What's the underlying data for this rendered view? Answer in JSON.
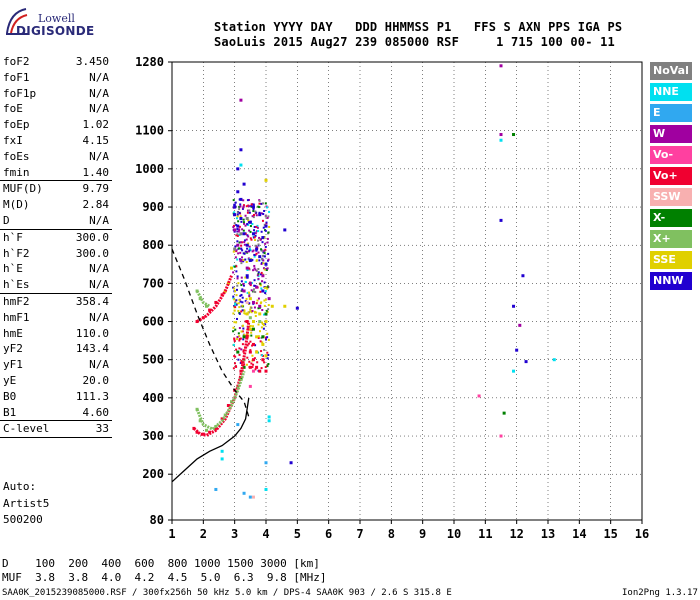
{
  "logo": {
    "top": "Lowell",
    "bottom": "DIGISONDE"
  },
  "header": {
    "line1": "Station YYYY DAY   DDD HHMMSS P1   FFS S AXN PPS IGA PS",
    "line2": "SaoLuis 2015 Aug27 239 085000 RSF     1 715 100 00- 11"
  },
  "params": [
    {
      "name": "foF2",
      "value": "3.450"
    },
    {
      "name": "foF1",
      "value": "N/A"
    },
    {
      "name": "foF1p",
      "value": "N/A"
    },
    {
      "name": "foE",
      "value": "N/A"
    },
    {
      "name": "foEp",
      "value": "1.02"
    },
    {
      "name": "fxI",
      "value": "4.15"
    },
    {
      "name": "foEs",
      "value": "N/A"
    },
    {
      "name": "fmin",
      "value": "1.40",
      "sep": true
    },
    {
      "name": "MUF(D)",
      "value": "9.79"
    },
    {
      "name": "M(D)",
      "value": "2.84"
    },
    {
      "name": "D",
      "value": "N/A",
      "sep": true
    },
    {
      "name": "h`F",
      "value": "300.0"
    },
    {
      "name": "h`F2",
      "value": "300.0"
    },
    {
      "name": "h`E",
      "value": "N/A"
    },
    {
      "name": "h`Es",
      "value": "N/A",
      "sep": true
    },
    {
      "name": "hmF2",
      "value": "358.4"
    },
    {
      "name": "hmF1",
      "value": "N/A"
    },
    {
      "name": "hmE",
      "value": "110.0"
    },
    {
      "name": "yF2",
      "value": "143.4"
    },
    {
      "name": "yF1",
      "value": "N/A"
    },
    {
      "name": "yE",
      "value": "20.0"
    },
    {
      "name": "B0",
      "value": "111.3"
    },
    {
      "name": "B1",
      "value": "4.60",
      "sep": true
    },
    {
      "name": "C-level",
      "value": "33",
      "sep": true
    }
  ],
  "auto": {
    "label": "Auto:",
    "system": "Artist5",
    "version": "500200"
  },
  "legend": [
    {
      "label": "NoVal",
      "color": "#808080"
    },
    {
      "label": "NNE",
      "color": "#00e0f0"
    },
    {
      "label": "E",
      "color": "#30a8f0"
    },
    {
      "label": "W",
      "color": "#a000a0"
    },
    {
      "label": "Vo-",
      "color": "#ff40a0"
    },
    {
      "label": "Vo+",
      "color": "#f00030"
    },
    {
      "label": "SSW",
      "color": "#f8b0b0"
    },
    {
      "label": "X-",
      "color": "#008000"
    },
    {
      "label": "X+",
      "color": "#80c060"
    },
    {
      "label": "SSE",
      "color": "#e0d000"
    },
    {
      "label": "NNW",
      "color": "#2000d0"
    }
  ],
  "bottom": {
    "line1": "D    100  200  400  600  800 1000 1500 3000 [km]",
    "line2": "MUF  3.8  3.8  4.0  4.2  4.5  5.0  6.3  9.8 [MHz]"
  },
  "footer": {
    "left": "SAA0K_2015239085000.RSF / 300fx256h 50 kHz 5.0 km / DPS-4 SAA0K 903 / 2.6 S 315.8 E",
    "right": "Ion2Png 1.3.17"
  },
  "chart_data": {
    "type": "scatter",
    "title": "",
    "xlabel": "",
    "ylabel": "",
    "xlim": [
      1,
      16
    ],
    "ylim": [
      80,
      1280
    ],
    "x_ticks": [
      1,
      2,
      3,
      4,
      5,
      6,
      7,
      8,
      9,
      10,
      11,
      12,
      13,
      14,
      15,
      16
    ],
    "y_ticks": [
      80,
      200,
      300,
      400,
      500,
      600,
      700,
      800,
      900,
      1000,
      1100,
      1280
    ],
    "grid": true,
    "legend_position": "right",
    "series": [
      {
        "name": "NNW",
        "color_key": "NNW",
        "points": [
          [
            3.0,
            900
          ],
          [
            3.1,
            850
          ],
          [
            3.2,
            870
          ],
          [
            3.3,
            830
          ],
          [
            3.5,
            860
          ],
          [
            3.6,
            830
          ],
          [
            3.8,
            880
          ],
          [
            3.9,
            820
          ],
          [
            4.0,
            850
          ],
          [
            3.4,
            800
          ],
          [
            3.7,
            790
          ],
          [
            3.2,
            920
          ],
          [
            3.1,
            940
          ],
          [
            3.3,
            960
          ],
          [
            3.6,
            900
          ],
          [
            3.0,
            880
          ],
          [
            3.5,
            760
          ],
          [
            3.8,
            770
          ],
          [
            4.6,
            840
          ],
          [
            3.1,
            1000
          ],
          [
            3.2,
            1050
          ],
          [
            3.4,
            720
          ],
          [
            3.9,
            680
          ],
          [
            4.0,
            750
          ],
          [
            5.0,
            635
          ],
          [
            4.8,
            230
          ],
          [
            11.5,
            865
          ],
          [
            12.2,
            720
          ],
          [
            11.9,
            640
          ],
          [
            12.0,
            525
          ],
          [
            12.3,
            495
          ]
        ]
      },
      {
        "name": "W",
        "color_key": "W",
        "points": [
          [
            3.2,
            760
          ],
          [
            3.4,
            740
          ],
          [
            3.5,
            700
          ],
          [
            3.7,
            690
          ],
          [
            3.9,
            720
          ],
          [
            3.3,
            680
          ],
          [
            3.6,
            650
          ],
          [
            3.1,
            800
          ],
          [
            3.0,
            840
          ],
          [
            3.8,
            640
          ],
          [
            4.1,
            660
          ],
          [
            3.2,
            1180
          ],
          [
            11.5,
            1270
          ],
          [
            11.5,
            1090
          ],
          [
            12.1,
            590
          ]
        ]
      },
      {
        "name": "SSE",
        "color_key": "SSE",
        "points": [
          [
            3.4,
            620
          ],
          [
            3.5,
            580
          ],
          [
            3.6,
            600
          ],
          [
            3.7,
            560
          ],
          [
            3.8,
            620
          ],
          [
            4.0,
            600
          ],
          [
            4.2,
            640
          ],
          [
            3.5,
            660
          ],
          [
            3.9,
            540
          ],
          [
            4.0,
            510
          ],
          [
            3.7,
            520
          ],
          [
            2.8,
            700
          ],
          [
            2.7,
            680
          ],
          [
            2.9,
            740
          ],
          [
            4.6,
            640
          ],
          [
            4.0,
            970
          ]
        ]
      },
      {
        "name": "Vo+",
        "color_key": "Vo+",
        "points": [
          [
            3.4,
            560
          ],
          [
            3.5,
            520
          ],
          [
            3.6,
            500
          ],
          [
            3.7,
            480
          ],
          [
            3.8,
            470
          ],
          [
            3.5,
            480
          ],
          [
            3.6,
            540
          ],
          [
            3.9,
            500
          ],
          [
            4.0,
            470
          ],
          [
            3.4,
            600
          ],
          [
            1.8,
            600
          ],
          [
            2.0,
            610
          ],
          [
            2.2,
            630
          ],
          [
            2.4,
            650
          ],
          [
            2.6,
            670
          ],
          [
            1.7,
            320
          ],
          [
            1.8,
            310
          ],
          [
            2.0,
            305
          ],
          [
            2.2,
            310
          ],
          [
            2.4,
            320
          ],
          [
            2.6,
            345
          ],
          [
            2.8,
            380
          ],
          [
            3.0,
            420
          ],
          [
            3.2,
            470
          ]
        ]
      },
      {
        "name": "X-",
        "color_key": "X-",
        "points": [
          [
            3.3,
            560
          ],
          [
            3.6,
            580
          ],
          [
            3.9,
            560
          ],
          [
            4.0,
            620
          ],
          [
            3.2,
            450
          ],
          [
            3.3,
            480
          ],
          [
            3.1,
            520
          ],
          [
            11.9,
            1090
          ],
          [
            11.6,
            360
          ]
        ]
      },
      {
        "name": "X+",
        "color_key": "X+",
        "points": [
          [
            1.8,
            680
          ],
          [
            1.9,
            660
          ],
          [
            2.1,
            640
          ],
          [
            1.8,
            370
          ],
          [
            1.9,
            340
          ],
          [
            2.1,
            315
          ],
          [
            2.4,
            325
          ],
          [
            2.7,
            355
          ],
          [
            2.9,
            390
          ],
          [
            3.1,
            430
          ],
          [
            3.3,
            500
          ],
          [
            3.5,
            610
          ],
          [
            3.8,
            600
          ]
        ]
      },
      {
        "name": "NNE",
        "color_key": "NNE",
        "points": [
          [
            2.6,
            260
          ],
          [
            2.6,
            240
          ],
          [
            3.2,
            1010
          ],
          [
            4.1,
            350
          ],
          [
            4.1,
            340
          ],
          [
            4.0,
            160
          ],
          [
            11.5,
            1075
          ],
          [
            11.9,
            470
          ],
          [
            13.2,
            500
          ]
        ]
      },
      {
        "name": "E",
        "color_key": "E",
        "points": [
          [
            2.4,
            160
          ],
          [
            3.3,
            150
          ],
          [
            3.5,
            140
          ],
          [
            4.0,
            230
          ],
          [
            3.1,
            330
          ]
        ]
      },
      {
        "name": "Vo-",
        "color_key": "Vo-",
        "points": [
          [
            3.5,
            430
          ],
          [
            3.6,
            470
          ],
          [
            10.8,
            405
          ],
          [
            11.5,
            300
          ]
        ]
      },
      {
        "name": "SSW",
        "color_key": "SSW",
        "points": [
          [
            3.6,
            140
          ],
          [
            3.4,
            650
          ]
        ]
      },
      {
        "name": "NoVal",
        "color_key": "NoVal",
        "points": [
          [
            3.2,
            830
          ],
          [
            3.4,
            870
          ],
          [
            3.0,
            790
          ]
        ]
      }
    ],
    "profile_solid": [
      [
        1.0,
        180
      ],
      [
        1.4,
        210
      ],
      [
        1.8,
        240
      ],
      [
        2.2,
        260
      ],
      [
        2.6,
        275
      ],
      [
        3.0,
        300
      ],
      [
        3.2,
        320
      ],
      [
        3.35,
        345
      ],
      [
        3.45,
        400
      ]
    ],
    "profile_dashed": [
      [
        1.0,
        790
      ],
      [
        1.4,
        710
      ],
      [
        1.8,
        620
      ],
      [
        2.2,
        540
      ],
      [
        2.6,
        470
      ],
      [
        3.0,
        420
      ],
      [
        3.3,
        390
      ],
      [
        3.45,
        350
      ]
    ]
  }
}
